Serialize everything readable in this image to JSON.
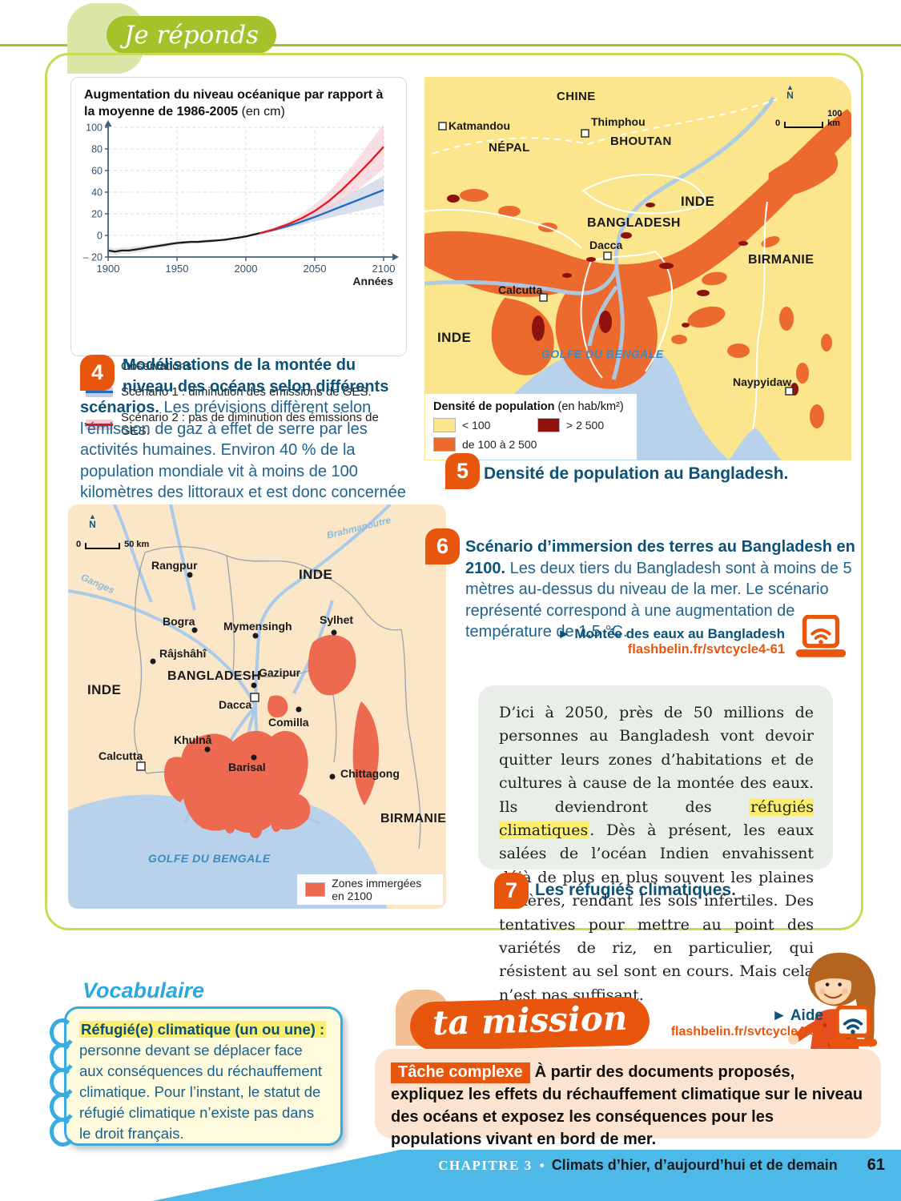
{
  "page": {
    "header_label": "Je réponds"
  },
  "chart_data": {
    "type": "line",
    "title": "Augmentation du niveau océanique par rapport à la moyenne de 1986-2005",
    "title_unit": "(en cm)",
    "xlabel": "Années",
    "xlim": [
      1900,
      2100
    ],
    "ylim": [
      -20,
      100
    ],
    "xticks": [
      1900,
      1950,
      2000,
      2050,
      2100
    ],
    "yticks": [
      -20,
      0,
      20,
      40,
      60,
      80,
      100
    ],
    "grid": true,
    "legend_position": "below",
    "series": [
      {
        "name": "Observations",
        "color": "#1a1a1a",
        "band_color": "#d6d6d6",
        "x": [
          1900,
          1905,
          1910,
          1915,
          1920,
          1925,
          1930,
          1935,
          1940,
          1945,
          1950,
          1955,
          1960,
          1965,
          1970,
          1975,
          1980,
          1985,
          1990,
          1995,
          2000,
          2005,
          2010
        ],
        "y": [
          -14,
          -15,
          -14,
          -14,
          -13,
          -12,
          -11,
          -10,
          -9,
          -8,
          -7,
          -6.5,
          -6,
          -6,
          -5.5,
          -5,
          -4.5,
          -4,
          -3,
          -2,
          -1,
          0.5,
          2
        ],
        "band_upper": [
          -11,
          -12,
          -11,
          -11,
          -10,
          -9.5,
          -9,
          -8,
          -7,
          -6.5,
          -5.5,
          -5,
          -4.5,
          -4.5,
          -4,
          -3.5,
          -3.5,
          -3,
          -2,
          -1,
          0,
          1.5,
          3
        ],
        "band_lower": [
          -17,
          -18,
          -17,
          -17,
          -16,
          -15,
          -13.5,
          -12,
          -11,
          -10,
          -8.5,
          -8,
          -7.5,
          -7.5,
          -7,
          -6.5,
          -6,
          -5,
          -4,
          -3,
          -2,
          -0.5,
          1
        ]
      },
      {
        "name": "Scénario 1 : diminution des émissions de GES.",
        "color": "#1f6cc0",
        "band_color": "#c3cbe3",
        "x": [
          2010,
          2020,
          2030,
          2040,
          2050,
          2060,
          2070,
          2080,
          2090,
          2100
        ],
        "y": [
          2,
          5,
          8.5,
          12.5,
          17,
          22,
          27,
          32,
          37,
          42
        ],
        "band_upper": [
          3,
          6.5,
          11,
          16,
          22,
          28,
          34,
          41,
          48,
          55
        ],
        "band_lower": [
          1,
          3.5,
          6.5,
          9.5,
          13,
          16,
          19,
          22,
          25,
          28
        ]
      },
      {
        "name": "Scénario 2 : pas de diminution des émissions de GES.",
        "color": "#e0191f",
        "band_color": "#f6c9d4",
        "x": [
          2010,
          2020,
          2030,
          2040,
          2050,
          2060,
          2070,
          2080,
          2090,
          2100
        ],
        "y": [
          2,
          5.5,
          10,
          15.5,
          22.5,
          31.5,
          42.5,
          55,
          68,
          82
        ],
        "band_upper": [
          3,
          7,
          12.5,
          19.5,
          28.5,
          40,
          54,
          69,
          86,
          103
        ],
        "band_lower": [
          1,
          4,
          7.5,
          12,
          17.5,
          24,
          32,
          41,
          51,
          62
        ]
      }
    ]
  },
  "doc4": {
    "number": "4",
    "title": "Modélisations de la montée du niveau des océans selon différents scénarios.",
    "body": "Les prévisions diffèrent selon l’émission de gaz à effet de serre par les activités humaines. Environ 40 % de la population mondiale vit à moins de 100 kilomètres des littoraux et est donc concernée par la montée des eaux."
  },
  "map_density": {
    "north": "N",
    "scale_zero": "0",
    "scale_label": "100 km",
    "labels": {
      "chine": "CHINE",
      "nepal": "NÉPAL",
      "bhoutan": "BHOUTAN",
      "inde_e": "INDE",
      "bangladesh": "BANGLADESH",
      "birmanie": "BIRMANIE",
      "inde_sw": "INDE",
      "katmandou": "Katmandou",
      "thimphou": "Thimphou",
      "dacca": "Dacca",
      "calcutta": "Calcutta",
      "naypyidaw": "Naypyidaw",
      "golfe": "GOLFE DU BENGALE"
    },
    "legend": {
      "title": "Densité de population",
      "unit": "(en hab/km²)",
      "lt": "< 100",
      "mid": "de 100 à 2 500",
      "gt": "> 2 500"
    }
  },
  "doc5": {
    "number": "5",
    "caption": "Densité de population au Bangladesh."
  },
  "map_immersion": {
    "north": "N",
    "scale_zero": "0",
    "scale_label": "50 km",
    "legend_label": "Zones immergées en 2100",
    "labels": {
      "ganges": "Ganges",
      "brahmapoutre": "Brahmapoutre",
      "rangpur": "Rangpur",
      "inde_ne": "INDE",
      "bogra": "Bogra",
      "mymensingh": "Mymensingh",
      "sylhet": "Sylhet",
      "rajshahi": "Râjshâhî",
      "bangladesh": "BANGLADESH",
      "gazipur": "Gazipur",
      "dacca": "Dacca",
      "inde_w": "INDE",
      "comilla": "Comilla",
      "khulna": "Khulnâ",
      "calcutta": "Calcutta",
      "barisal": "Barisal",
      "chittagong": "Chittagong",
      "birmanie": "BIRMANIE",
      "golfe": "GOLFE DU BENGALE"
    }
  },
  "doc6": {
    "number": "6",
    "title": "Scénario d’immersion des terres au Bangladesh en 2100.",
    "body": "Les deux tiers du Bangladesh sont à moins de 5 mètres au-dessus du niveau de la mer. Le scénario représenté correspond à une augmentation de température de 1,5 °C.",
    "link_label": "► Montée des eaux au Bangladesh",
    "link_url": "flashbelin.fr/svtcycle4-61"
  },
  "doc7": {
    "number": "7",
    "text_before": "D’ici à 2050, près de 50 millions de personnes au Bangladesh vont devoir quitter leurs zones d’habitations et de cultures à cause de la montée des eaux. Ils deviendront des ",
    "highlight": "réfugiés climatiques",
    "text_after": ". Dès à présent, les eaux salées de l’océan Indien envahissent déjà de plus en plus souvent les plaines côtières, rendant les sols infertiles. Des tentatives pour mettre au point des variétés de riz, en particulier, qui résistent au sel sont en cours. Mais cela n’est pas suffisant.",
    "caption": "Les réfugiés climatiques."
  },
  "vocabulary": {
    "title": "Vocabulaire",
    "term": "Réfugié(e) climatique (un ou une) :",
    "definition": " personne devant se déplacer face aux conséquences du réchauffement climatique. Pour l’instant, le statut de réfugié climatique n’existe pas dans le droit français."
  },
  "mission": {
    "title": "ta mission",
    "aide_label": "► Aide",
    "aide_url": "flashbelin.fr/svtcycle4-61",
    "badge": "Tâche complexe",
    "text": "À partir des documents proposés, expliquez les effets du réchauffement climatique sur le niveau des océans et exposez les conséquences pour les populations vivant en bord de mer."
  },
  "footer": {
    "chapter": "CHAPITRE 3",
    "separator": "•",
    "title": "Climats d’hier, d’aujourd’hui et de demain",
    "page_number": "61"
  }
}
